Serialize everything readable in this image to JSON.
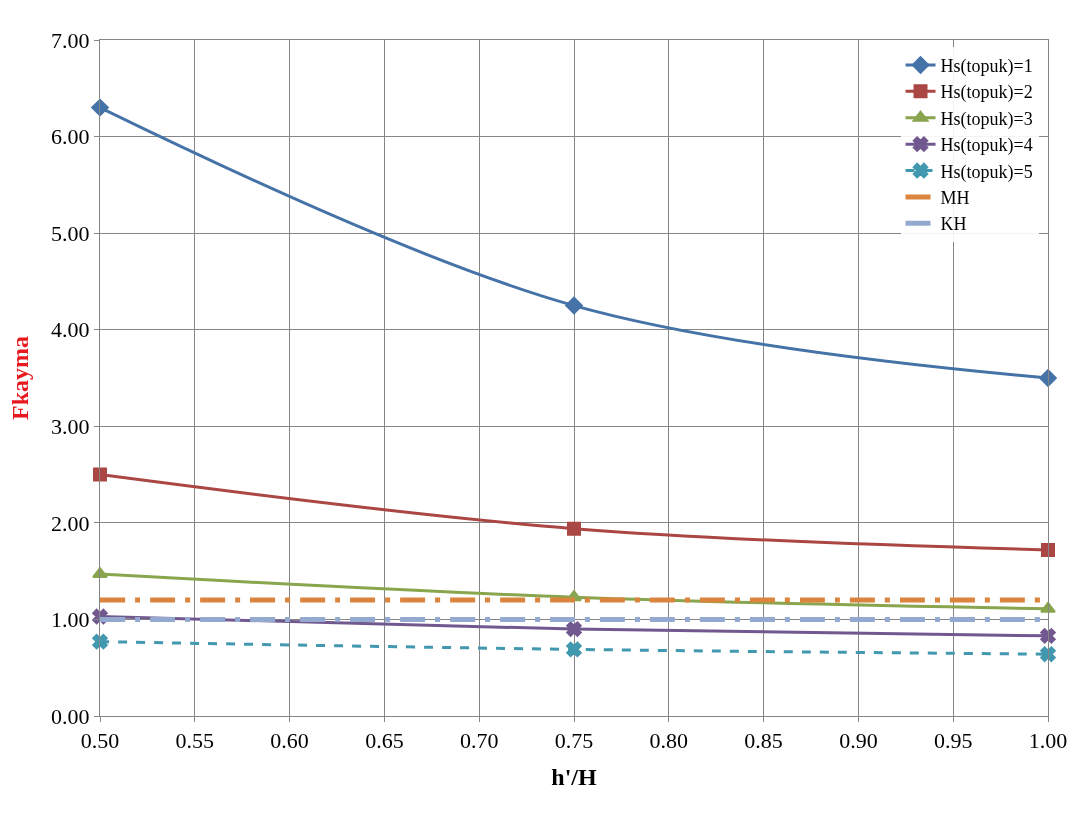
{
  "chart_data": {
    "type": "line",
    "xlabel": "h'/H",
    "ylabel": "Fkayma",
    "x": [
      0.5,
      0.75,
      1.0
    ],
    "series": [
      {
        "name": "Hs(topuk)=1",
        "color": "#4572a7",
        "values": [
          6.3,
          4.25,
          3.5
        ],
        "marker": "diamond",
        "line_style": "solid"
      },
      {
        "name": "Hs(topuk)=2",
        "color": "#aa4643",
        "values": [
          2.5,
          1.94,
          1.72
        ],
        "marker": "square",
        "line_style": "solid"
      },
      {
        "name": "Hs(topuk)=3",
        "color": "#89a54e",
        "values": [
          1.47,
          1.23,
          1.11
        ],
        "marker": "triangle",
        "line_style": "solid"
      },
      {
        "name": "Hs(topuk)=4",
        "color": "#71588f",
        "values": [
          1.03,
          0.9,
          0.83
        ],
        "marker": "cross",
        "line_style": "solid"
      },
      {
        "name": "Hs(topuk)=5",
        "color": "#4198af",
        "values": [
          0.77,
          0.69,
          0.64
        ],
        "marker": "cross",
        "line_style": "dashed"
      },
      {
        "name": "MH",
        "color": "#db843d",
        "values": [
          1.2,
          1.2,
          1.2
        ],
        "marker": "none",
        "line_style": "dashed"
      },
      {
        "name": "KH",
        "color": "#93a9cf",
        "values": [
          1.0,
          1.0,
          1.0
        ],
        "marker": "none",
        "line_style": "dashed"
      }
    ],
    "xlim": [
      0.5,
      1.0
    ],
    "xticks": [
      {
        "value": 0.5,
        "label": "0.50"
      },
      {
        "value": 0.55,
        "label": "0.55"
      },
      {
        "value": 0.6,
        "label": "0.60"
      },
      {
        "value": 0.65,
        "label": "0.65"
      },
      {
        "value": 0.7,
        "label": "0.70"
      },
      {
        "value": 0.75,
        "label": "0.75"
      },
      {
        "value": 0.8,
        "label": "0.80"
      },
      {
        "value": 0.85,
        "label": "0.85"
      },
      {
        "value": 0.9,
        "label": "0.90"
      },
      {
        "value": 0.95,
        "label": "0.95"
      },
      {
        "value": 1.0,
        "label": "1.00"
      }
    ],
    "ylim": [
      0,
      7
    ],
    "yticks": [
      {
        "value": 0,
        "label": "0.00"
      },
      {
        "value": 1,
        "label": "1.00"
      },
      {
        "value": 2,
        "label": "2.00"
      },
      {
        "value": 3,
        "label": "3.00"
      },
      {
        "value": 4,
        "label": "4.00"
      },
      {
        "value": 5,
        "label": "5.00"
      },
      {
        "value": 6,
        "label": "6.00"
      },
      {
        "value": 7,
        "label": "7.00"
      }
    ],
    "grid": true,
    "legend": "top right"
  }
}
